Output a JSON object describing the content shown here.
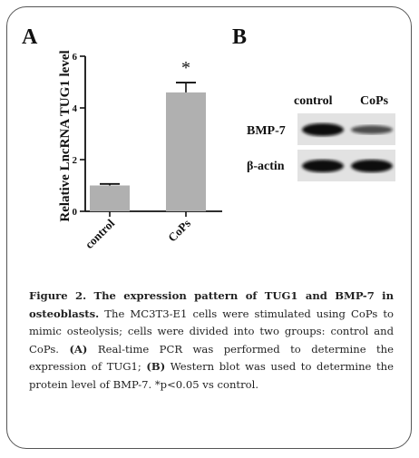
{
  "panel_a_letter": "A",
  "panel_b_letter": "B",
  "chart_data": {
    "type": "bar",
    "categories": [
      "control",
      "CoPs"
    ],
    "values": [
      1.0,
      4.6
    ],
    "errors": [
      0.06,
      0.38
    ],
    "ylabel": "Relative LncRNA TUG1 level",
    "ylim": [
      0,
      6
    ],
    "yticks": [
      "0",
      "2",
      "4",
      "6"
    ],
    "significance": [
      "",
      "*"
    ],
    "bar_color": "#b0b0b0"
  },
  "western_blot": {
    "columns": [
      "control",
      "CoPs"
    ],
    "rows": [
      {
        "label": "BMP-7",
        "intensity": [
          1.0,
          0.45
        ]
      },
      {
        "label": "β-actin",
        "intensity": [
          1.0,
          1.0
        ]
      }
    ]
  },
  "caption": {
    "title": "Figure 2. The expression pattern of TUG1 and BMP-7 in osteoblasts.",
    "text1": " The MC3T3-E1 cells were stimulated using CoPs to mimic osteolysis; cells were divided into two groups: control and CoPs. ",
    "a_label": "(A)",
    "text2": " Real-time PCR was performed to determine the expression of TUG1; ",
    "b_label": "(B)",
    "text3": " Western blot was used to determine the protein level of BMP-7. *p<0.05 vs control."
  }
}
